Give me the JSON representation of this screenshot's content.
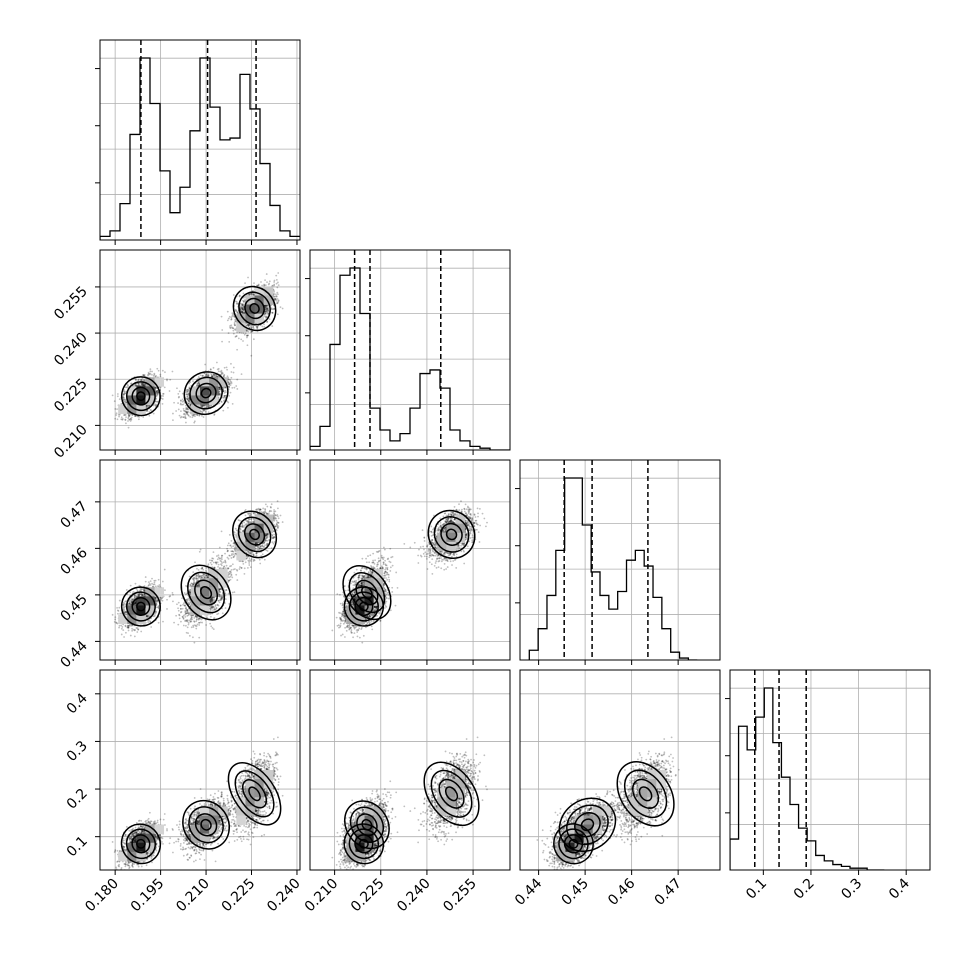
{
  "chart_data": {
    "type": "corner",
    "parameters": [
      {
        "range": [
          0.175,
          0.241
        ],
        "ticks": [
          "0.180",
          "0.195",
          "0.210",
          "0.225",
          "0.240"
        ],
        "quantiles": [
          0.1885,
          0.2105,
          0.2265
        ],
        "hist_edges_start": 0.175,
        "hist_bin_width": 0.0033,
        "hist_counts": [
          0.02,
          0.05,
          0.2,
          0.58,
          1.0,
          0.75,
          0.38,
          0.15,
          0.29,
          0.6,
          1.0,
          0.73,
          0.55,
          0.56,
          0.91,
          0.72,
          0.42,
          0.19,
          0.05,
          0.02
        ]
      },
      {
        "range": [
          0.202,
          0.267
        ],
        "ticks": [
          "0.210",
          "0.225",
          "0.240",
          "0.255"
        ],
        "quantiles": [
          0.2165,
          0.2215,
          0.2445
        ],
        "hist_edges_start": 0.202,
        "hist_bin_width": 0.00325,
        "hist_counts": [
          0.02,
          0.13,
          0.58,
          0.96,
          1.0,
          0.75,
          0.23,
          0.11,
          0.05,
          0.09,
          0.23,
          0.42,
          0.44,
          0.34,
          0.11,
          0.05,
          0.02,
          0.01,
          0.0,
          0.0
        ]
      },
      {
        "range": [
          0.436,
          0.479
        ],
        "ticks": [
          "0.44",
          "0.45",
          "0.46",
          "0.47"
        ],
        "quantiles": [
          0.4455,
          0.4515,
          0.4635
        ],
        "hist_edges_start": 0.438,
        "hist_bin_width": 0.0019,
        "hist_counts": [
          0.05,
          0.16,
          0.33,
          0.56,
          0.93,
          0.93,
          0.69,
          0.45,
          0.33,
          0.26,
          0.35,
          0.51,
          0.56,
          0.48,
          0.32,
          0.16,
          0.04,
          0.01,
          0.0
        ]
      },
      {
        "range": [
          0.03,
          0.45
        ],
        "ticks": [
          "0.1",
          "0.2",
          "0.3",
          "0.4"
        ],
        "quantiles": [
          0.082,
          0.133,
          0.19
        ],
        "hist_edges_start": 0.03,
        "hist_bin_width": 0.018,
        "hist_counts": [
          0.17,
          0.79,
          0.66,
          0.84,
          1.0,
          0.7,
          0.51,
          0.36,
          0.23,
          0.16,
          0.08,
          0.05,
          0.03,
          0.02,
          0.01,
          0.01,
          0.0,
          0.0
        ]
      }
    ],
    "modes": [
      {
        "mean": [
          0.1885,
          0.2195,
          0.4475,
          0.085
        ],
        "sd": [
          0.003,
          0.003,
          0.002,
          0.02
        ],
        "weight": 0.36
      },
      {
        "mean": [
          0.21,
          0.2205,
          0.4505,
          0.125
        ],
        "sd": [
          0.0035,
          0.0032,
          0.003,
          0.025
        ],
        "weight": 0.32
      },
      {
        "mean": [
          0.226,
          0.248,
          0.463,
          0.19
        ],
        "sd": [
          0.0032,
          0.0035,
          0.0025,
          0.035
        ],
        "weight": 0.32
      }
    ],
    "grid": true,
    "quantile_line_style": "dashed"
  }
}
